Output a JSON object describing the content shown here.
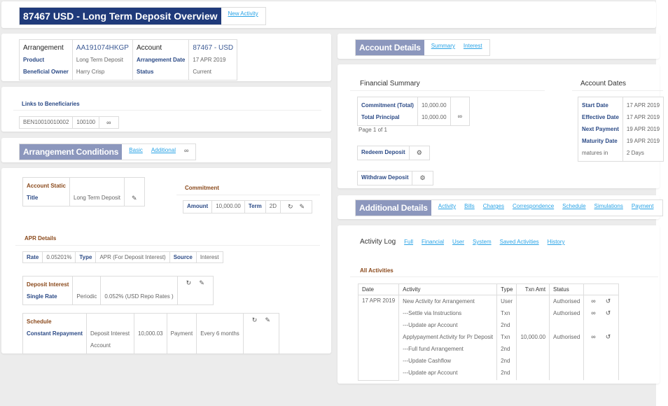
{
  "header": {
    "title": "87467 USD - Long Term Deposit Overview",
    "new_activity": "New Activity"
  },
  "overview": {
    "arrangement_label": "Arrangement",
    "arrangement_id": "AA191074HKGP",
    "account_label": "Account",
    "account_id": "87467 - USD",
    "product_label": "Product",
    "product": "Long Term Deposit",
    "arr_date_label": "Arrangement Date",
    "arr_date": "17 APR 2019",
    "owner_label": "Beneficial Owner",
    "owner": "Harry Crisp",
    "status_label": "Status",
    "status": "Current"
  },
  "beneficiaries": {
    "title": "Links to Beneficiaries",
    "id": "BEN10010010002",
    "code": "100100"
  },
  "conditions": {
    "title": "Arrangement Conditions",
    "tabs": [
      "Basic",
      "Additional"
    ],
    "account_static": {
      "heading": "Account Static",
      "title_label": "Title",
      "title": "Long Term Deposit"
    },
    "commitment": {
      "heading": "Commitment",
      "amount_label": "Amount",
      "amount": "10,000.00",
      "term_label": "Term",
      "term": "2D"
    },
    "apr": {
      "heading": "APR Details",
      "rate_label": "Rate",
      "rate": "0.05201%",
      "type_label": "Type",
      "type": "APR (For Deposit Interest)",
      "source_label": "Source",
      "source": "Interest"
    },
    "deposit_interest": {
      "heading": "Deposit Interest",
      "label": "Single Rate",
      "kind": "Periodic",
      "rate": "0.052% (USD Repo Rates )"
    },
    "schedule": {
      "heading": "Schedule",
      "label": "Constant Repayment",
      "property": "Deposit Interest Account",
      "amount": "10,000.03",
      "type": "Payment",
      "frequency": "Every 6 months"
    }
  },
  "account_details": {
    "title": "Account Details",
    "tabs": [
      "Summary",
      "Interest"
    ],
    "financial": {
      "heading": "Financial Summary",
      "commitment_label": "Commitment (Total)",
      "commitment": "10,000.00",
      "principal_label": "Total Principal",
      "principal": "10,000.00",
      "page": "Page 1 of 1",
      "redeem": "Redeem Deposit",
      "withdraw": "Withdraw Deposit"
    },
    "dates": {
      "heading": "Account Dates",
      "rows": [
        [
          "Start Date",
          "17 APR 2019"
        ],
        [
          "Effective Date",
          "17 APR 2019"
        ],
        [
          "Next Payment",
          "19 APR 2019"
        ],
        [
          "Maturity Date",
          "19 APR 2019"
        ],
        [
          "matures in",
          "2 Days"
        ]
      ]
    }
  },
  "additional": {
    "title": "Additional Details",
    "tabs": [
      "Activity",
      "Bills",
      "Charges",
      "Correspondence",
      "Schedule",
      "Simulations",
      "Payment"
    ]
  },
  "activity_log": {
    "title": "Activity Log",
    "tabs": [
      "Full",
      "Financial",
      "User",
      "System",
      "Saved Activities",
      "History"
    ],
    "section": "All Activities",
    "columns": [
      "Date",
      "Activity",
      "Type",
      "Txn Amt",
      "Status"
    ],
    "date": "17 APR 2019",
    "rows": [
      {
        "activity": "New Activity for Arrangement",
        "type": "User",
        "amt": "",
        "status": "Authorised",
        "actions": true
      },
      {
        "activity": "---Settle via Instructions",
        "type": "Txn",
        "amt": "",
        "status": "Authorised",
        "actions": true
      },
      {
        "activity": "---Update apr Account",
        "type": "2nd",
        "amt": "",
        "status": "",
        "actions": false
      },
      {
        "activity": "Applypayment Activity for Pr Deposit",
        "type": "Txn",
        "amt": "10,000.00",
        "status": "Authorised",
        "actions": true
      },
      {
        "activity": "---Full fund Arrangement",
        "type": "2nd",
        "amt": "",
        "status": "",
        "actions": false
      },
      {
        "activity": "---Update Cashflow",
        "type": "2nd",
        "amt": "",
        "status": "",
        "actions": false
      },
      {
        "activity": "---Update apr Account",
        "type": "2nd",
        "amt": "",
        "status": "",
        "actions": false
      }
    ]
  },
  "colors": {
    "title_bg": "#1f3a7a",
    "section_bg": "#8c97bd",
    "link": "#29a3e6",
    "label": "#2b4a86",
    "heading": "#8b4a1c"
  }
}
